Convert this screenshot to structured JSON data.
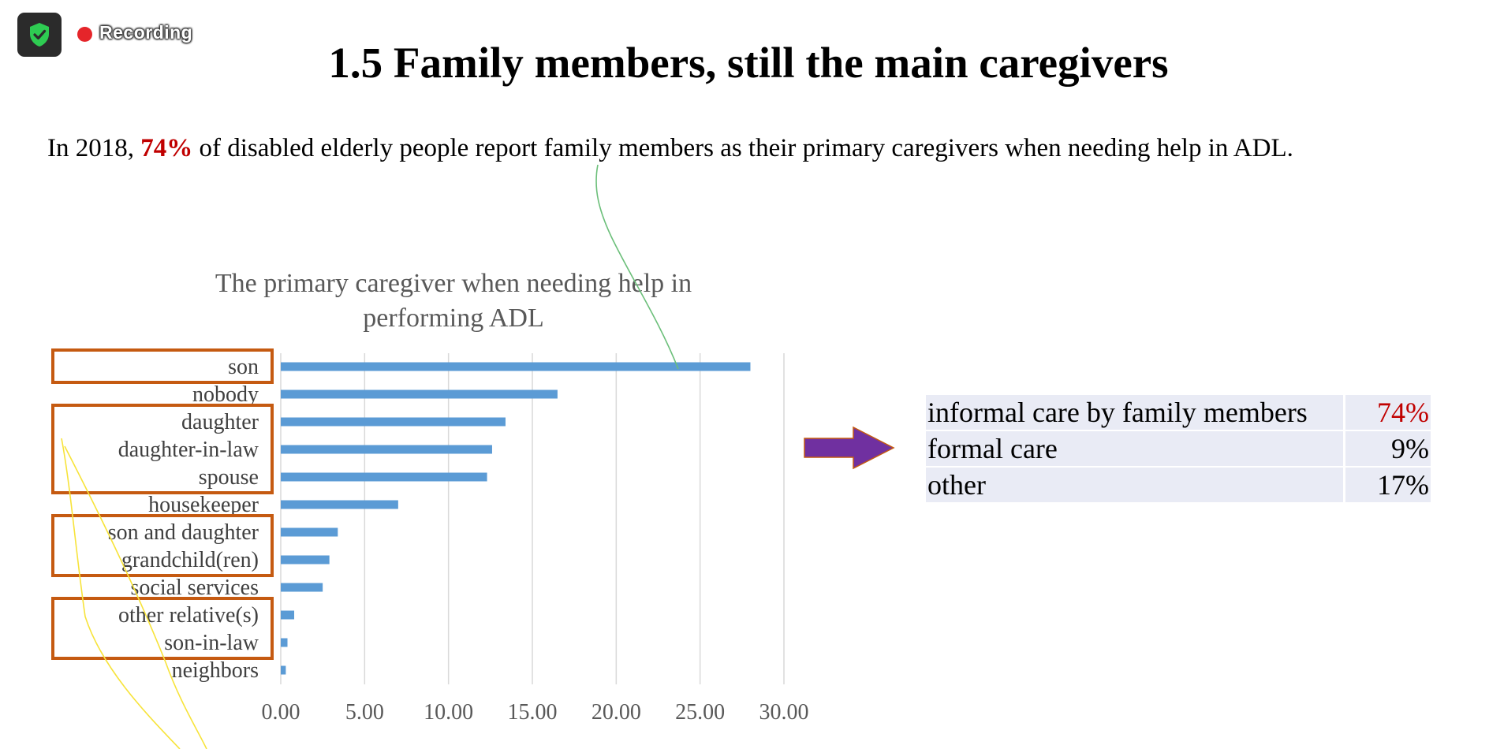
{
  "recording": {
    "label": "Recording"
  },
  "slide": {
    "title": "1.5 Family members, still the main caregivers",
    "lead": {
      "before": "In 2018, ",
      "highlight": "74%",
      "after": " of disabled elderly people report family members as their primary caregivers when needing help in ADL."
    }
  },
  "chart_data": {
    "type": "bar",
    "orientation": "horizontal",
    "title": "The primary caregiver when needing help in performing ADL",
    "title_lines": [
      "The primary caregiver when needing help in",
      "performing ADL"
    ],
    "categories": [
      "son",
      "nobody",
      "daughter",
      "daughter-in-law",
      "spouse",
      "housekeeper",
      "son and daughter",
      "grandchild(ren)",
      "social services",
      "other relative(s)",
      "son-in-law",
      "neighbors"
    ],
    "values": [
      28.0,
      16.5,
      13.4,
      12.6,
      12.3,
      7.0,
      3.4,
      2.9,
      2.5,
      0.8,
      0.4,
      0.3
    ],
    "xlim": [
      0,
      30
    ],
    "xticks": [
      "0.00",
      "5.00",
      "10.00",
      "15.00",
      "20.00",
      "25.00",
      "30.00"
    ],
    "xlabel": "",
    "ylabel": "",
    "grid": "vertical",
    "bar_color": "#5b9bd5",
    "highlight_groups": [
      [
        "son"
      ],
      [
        "daughter",
        "daughter-in-law",
        "spouse"
      ],
      [
        "son and daughter",
        "grandchild(ren)"
      ],
      [
        "other relative(s)",
        "son-in-law"
      ]
    ],
    "highlight_color": "#c55a11"
  },
  "summary": {
    "rows": [
      {
        "label": "informal care by family members",
        "value": "74%"
      },
      {
        "label": "formal care",
        "value": "9%"
      },
      {
        "label": "other",
        "value": "17%"
      }
    ],
    "highlight_color": "#c00000"
  },
  "colors": {
    "arrow": "#7030a0",
    "ink_green": "#6cbf7a",
    "ink_yellow": "#f7e33a"
  }
}
